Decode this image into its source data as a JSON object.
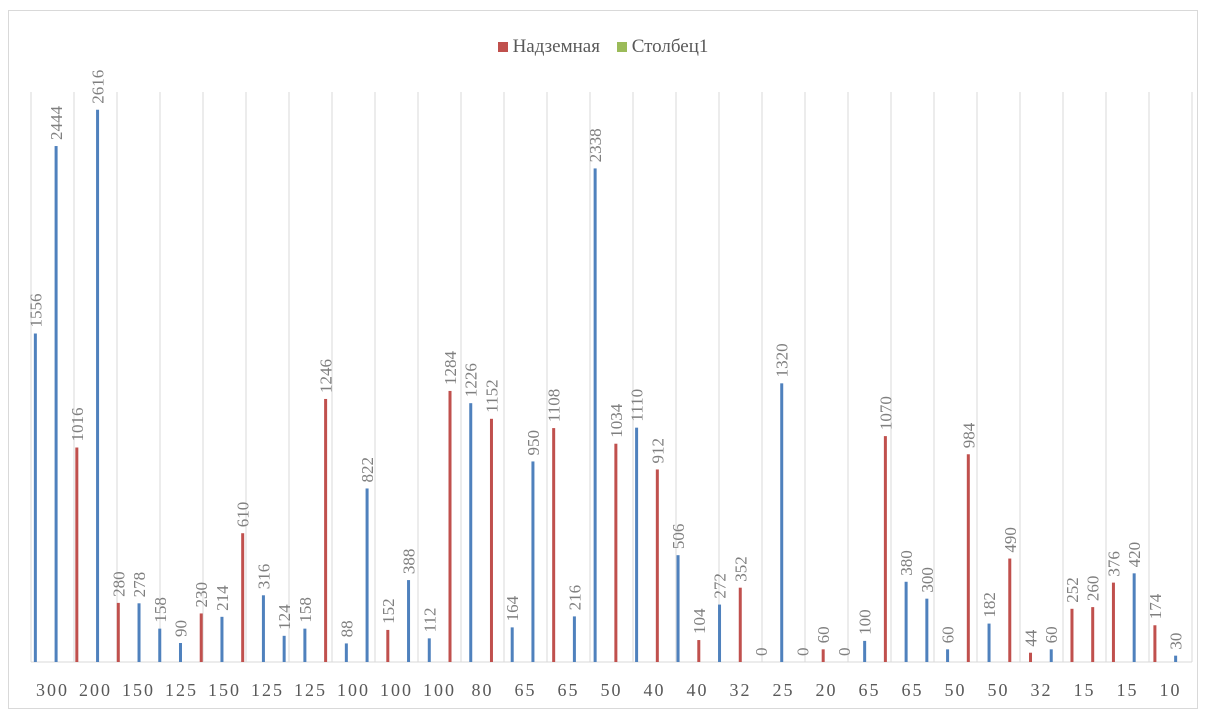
{
  "chart_data": {
    "type": "bar",
    "title": "",
    "xlabel": "",
    "ylabel": "",
    "ylim": [
      0,
      2700
    ],
    "grid": "vertical",
    "legend_position": "top",
    "categories": [
      "300",
      "200",
      "150",
      "125",
      "150",
      "125",
      "125",
      "100",
      "100",
      "100",
      "80",
      "65",
      "65",
      "50",
      "40",
      "40",
      "32",
      "25",
      "20",
      "65",
      "65",
      "50",
      "50",
      "32",
      "15",
      "15",
      "10"
    ],
    "legend": [
      {
        "name": "Надземная",
        "color": "#c0504d"
      },
      {
        "name": "Столбец1",
        "color": "#9bbb59"
      }
    ],
    "bars": [
      {
        "value": 1556,
        "label": "1556",
        "color": "#4f81bd"
      },
      {
        "value": 2444,
        "label": "2444",
        "color": "#4f81bd"
      },
      {
        "value": 1016,
        "label": "1016",
        "color": "#c0504d"
      },
      {
        "value": 2616,
        "label": "2616",
        "color": "#4f81bd"
      },
      {
        "value": 280,
        "label": "280",
        "color": "#c0504d"
      },
      {
        "value": 278,
        "label": "278",
        "color": "#4f81bd"
      },
      {
        "value": 158,
        "label": "158",
        "color": "#4f81bd"
      },
      {
        "value": 90,
        "label": "90",
        "color": "#4f81bd"
      },
      {
        "value": 230,
        "label": "230",
        "color": "#c0504d"
      },
      {
        "value": 214,
        "label": "214",
        "color": "#4f81bd"
      },
      {
        "value": 610,
        "label": "610",
        "color": "#c0504d"
      },
      {
        "value": 316,
        "label": "316",
        "color": "#4f81bd"
      },
      {
        "value": 124,
        "label": "124",
        "color": "#4f81bd"
      },
      {
        "value": 158,
        "label": "158",
        "color": "#4f81bd"
      },
      {
        "value": 1246,
        "label": "1246",
        "color": "#c0504d"
      },
      {
        "value": 88,
        "label": "88",
        "color": "#4f81bd"
      },
      {
        "value": 822,
        "label": "822",
        "color": "#4f81bd"
      },
      {
        "value": 152,
        "label": "152",
        "color": "#c0504d"
      },
      {
        "value": 388,
        "label": "388",
        "color": "#4f81bd"
      },
      {
        "value": 112,
        "label": "112",
        "color": "#4f81bd"
      },
      {
        "value": 1284,
        "label": "1284",
        "color": "#c0504d"
      },
      {
        "value": 1226,
        "label": "1226",
        "color": "#4f81bd"
      },
      {
        "value": 1152,
        "label": "1152",
        "color": "#c0504d"
      },
      {
        "value": 164,
        "label": "164",
        "color": "#4f81bd"
      },
      {
        "value": 950,
        "label": "950",
        "color": "#4f81bd"
      },
      {
        "value": 1108,
        "label": "1108",
        "color": "#c0504d"
      },
      {
        "value": 216,
        "label": "216",
        "color": "#4f81bd"
      },
      {
        "value": 2338,
        "label": "2338",
        "color": "#4f81bd"
      },
      {
        "value": 1034,
        "label": "1034",
        "color": "#c0504d"
      },
      {
        "value": 1110,
        "label": "1110",
        "color": "#4f81bd"
      },
      {
        "value": 912,
        "label": "912",
        "color": "#c0504d"
      },
      {
        "value": 506,
        "label": "506",
        "color": "#4f81bd"
      },
      {
        "value": 104,
        "label": "104",
        "color": "#c0504d"
      },
      {
        "value": 272,
        "label": "272",
        "color": "#4f81bd"
      },
      {
        "value": 352,
        "label": "352",
        "color": "#c0504d"
      },
      {
        "value": 0,
        "label": "0",
        "color": "#c0504d"
      },
      {
        "value": 1320,
        "label": "1320",
        "color": "#4f81bd"
      },
      {
        "value": 0,
        "label": "0",
        "color": "#4f81bd"
      },
      {
        "value": 60,
        "label": "60",
        "color": "#c0504d"
      },
      {
        "value": 0,
        "label": "0",
        "color": "#c0504d"
      },
      {
        "value": 100,
        "label": "100",
        "color": "#4f81bd"
      },
      {
        "value": 1070,
        "label": "1070",
        "color": "#c0504d"
      },
      {
        "value": 380,
        "label": "380",
        "color": "#4f81bd"
      },
      {
        "value": 300,
        "label": "300",
        "color": "#4f81bd"
      },
      {
        "value": 60,
        "label": "60",
        "color": "#4f81bd"
      },
      {
        "value": 984,
        "label": "984",
        "color": "#c0504d"
      },
      {
        "value": 182,
        "label": "182",
        "color": "#4f81bd"
      },
      {
        "value": 490,
        "label": "490",
        "color": "#c0504d"
      },
      {
        "value": 44,
        "label": "44",
        "color": "#c0504d"
      },
      {
        "value": 60,
        "label": "60",
        "color": "#4f81bd"
      },
      {
        "value": 252,
        "label": "252",
        "color": "#c0504d"
      },
      {
        "value": 260,
        "label": "260",
        "color": "#c0504d"
      },
      {
        "value": 376,
        "label": "376",
        "color": "#c0504d"
      },
      {
        "value": 420,
        "label": "420",
        "color": "#4f81bd"
      },
      {
        "value": 174,
        "label": "174",
        "color": "#c0504d"
      },
      {
        "value": 30,
        "label": "30",
        "color": "#4f81bd"
      }
    ]
  }
}
